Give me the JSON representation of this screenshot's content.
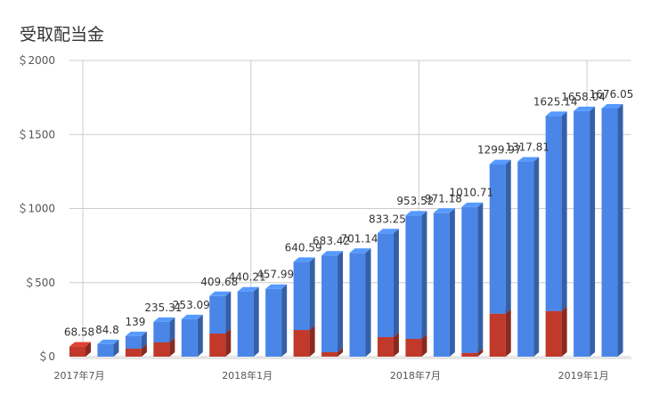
{
  "chart_data": {
    "type": "bar",
    "stacked": true,
    "style": "3d-column",
    "title": "受取配当金",
    "xlabel": "",
    "ylabel": "",
    "ylim": [
      0,
      2000
    ],
    "y_ticks": [
      "＄0",
      "＄500",
      "＄1000",
      "＄1500",
      "＄2000"
    ],
    "y_tick_values": [
      0,
      500,
      1000,
      1500,
      2000
    ],
    "x_tick_labels": [
      {
        "index": 0,
        "label": "2017年7月"
      },
      {
        "index": 6,
        "label": "2018年1月"
      },
      {
        "index": 12,
        "label": "2018年7月"
      },
      {
        "index": 18,
        "label": "2019年1月"
      }
    ],
    "grid": true,
    "legend": "none",
    "categories": [
      "2017-07",
      "2017-08",
      "2017-09",
      "2017-10",
      "2017-11",
      "2017-12",
      "2018-01",
      "2018-02",
      "2018-03",
      "2018-04",
      "2018-05",
      "2018-06",
      "2018-07",
      "2018-08",
      "2018-09",
      "2018-10",
      "2018-11",
      "2018-12",
      "2019-01",
      "2019-02",
      "2019-03"
    ],
    "series": [
      {
        "color": "#c0392b",
        "values": [
          68.58,
          0,
          54.2,
          96.2,
          0,
          156,
          0,
          0,
          180,
          30,
          0,
          132,
          120,
          0,
          25,
          290,
          0,
          308,
          0,
          0,
          0
        ]
      },
      {
        "color": "#4a86e8",
        "values": [
          0,
          84.8,
          84.8,
          139.11,
          253.09,
          253.68,
          440.21,
          457.99,
          460.59,
          653.42,
          701.14,
          701.25,
          833.52,
          971.18,
          985.71,
          1009.91,
          1317.81,
          1317.14,
          1658.04,
          1676.05,
          0
        ]
      }
    ],
    "data_labels": [
      "68.58",
      "84.8",
      "139",
      "235.31",
      "253.09",
      "409.68",
      "440.21",
      "457.99",
      "640.59",
      "683.42",
      "701.14",
      "833.25",
      "953.52",
      "971.18",
      "1010.71",
      "1299.97",
      "1317.81",
      "1625.14",
      "1658.04",
      "1676.05"
    ],
    "colors": {
      "bar_red": "#c0392b",
      "bar_blue": "#4a86e8",
      "grid": "#cccccc",
      "text": "#333333"
    }
  }
}
